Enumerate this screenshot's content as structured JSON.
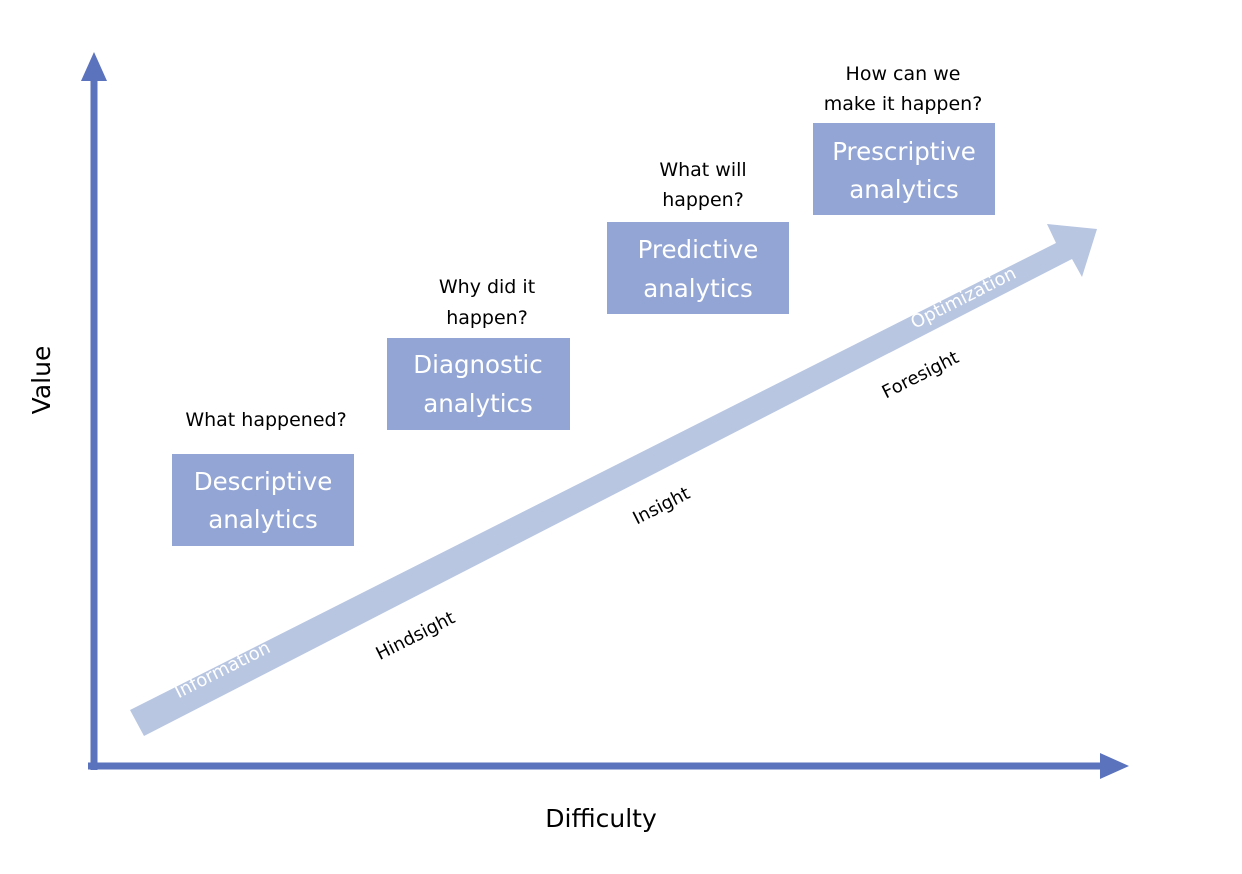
{
  "axes": {
    "y_label": "Value",
    "x_label": "Difficulty"
  },
  "colors": {
    "axis": "#5b72bd",
    "box": "#93a5d4",
    "progression_arrow": "#b8c6e2",
    "arrow_text": "#ffffff",
    "box_text": "#ffffff"
  },
  "stages": [
    {
      "question_lines": [
        "What happened?"
      ],
      "label_lines": [
        "Descriptive",
        "analytics"
      ]
    },
    {
      "question_lines": [
        "Why did it",
        "happen?"
      ],
      "label_lines": [
        "Diagnostic",
        "analytics"
      ]
    },
    {
      "question_lines": [
        "What will",
        "happen?"
      ],
      "label_lines": [
        "Predictive",
        "analytics"
      ]
    },
    {
      "question_lines": [
        "How can we",
        "make it happen?"
      ],
      "label_lines": [
        "Prescriptive",
        "analytics"
      ]
    }
  ],
  "progression_arrow": {
    "start_label": "Information",
    "end_label": "Optimization"
  },
  "insight_labels": [
    "Hindsight",
    "Insight",
    "Foresight"
  ]
}
